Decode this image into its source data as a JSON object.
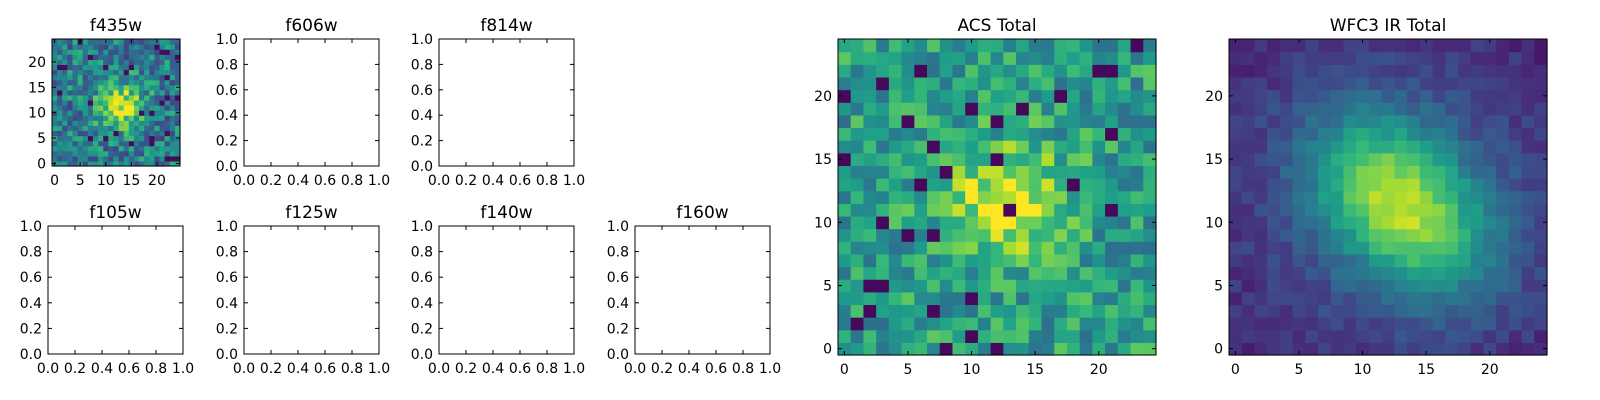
{
  "chart_data": [
    {
      "type": "heatmap",
      "title": "f435w",
      "xlim": [
        -0.5,
        24.5
      ],
      "ylim": [
        -0.5,
        24.5
      ],
      "xticks": [
        0,
        5,
        10,
        15,
        20
      ],
      "yticks": [
        0,
        5,
        10,
        15,
        20
      ],
      "colormap": "viridis",
      "grid": false
    },
    {
      "type": "empty",
      "title": "f606w",
      "xlim": [
        0,
        1
      ],
      "ylim": [
        0,
        1
      ],
      "xticks": [
        "0.0",
        "0.2",
        "0.4",
        "0.6",
        "0.8",
        "1.0"
      ],
      "yticks": [
        "0.0",
        "0.2",
        "0.4",
        "0.6",
        "0.8",
        "1.0"
      ],
      "grid": false
    },
    {
      "type": "empty",
      "title": "f814w",
      "xlim": [
        0,
        1
      ],
      "ylim": [
        0,
        1
      ],
      "xticks": [
        "0.0",
        "0.2",
        "0.4",
        "0.6",
        "0.8",
        "1.0"
      ],
      "yticks": [
        "0.0",
        "0.2",
        "0.4",
        "0.6",
        "0.8",
        "1.0"
      ],
      "grid": false
    },
    {
      "type": "empty",
      "title": "f105w",
      "xlim": [
        0,
        1
      ],
      "ylim": [
        0,
        1
      ],
      "xticks": [
        "0.0",
        "0.2",
        "0.4",
        "0.6",
        "0.8",
        "1.0"
      ],
      "yticks": [
        "0.0",
        "0.2",
        "0.4",
        "0.6",
        "0.8",
        "1.0"
      ],
      "grid": false
    },
    {
      "type": "empty",
      "title": "f125w",
      "xlim": [
        0,
        1
      ],
      "ylim": [
        0,
        1
      ],
      "xticks": [
        "0.0",
        "0.2",
        "0.4",
        "0.6",
        "0.8",
        "1.0"
      ],
      "yticks": [
        "0.0",
        "0.2",
        "0.4",
        "0.6",
        "0.8",
        "1.0"
      ],
      "grid": false
    },
    {
      "type": "empty",
      "title": "f140w",
      "xlim": [
        0,
        1
      ],
      "ylim": [
        0,
        1
      ],
      "xticks": [
        "0.0",
        "0.2",
        "0.4",
        "0.6",
        "0.8",
        "1.0"
      ],
      "yticks": [
        "0.0",
        "0.2",
        "0.4",
        "0.6",
        "0.8",
        "1.0"
      ],
      "grid": false
    },
    {
      "type": "empty",
      "title": "f160w",
      "xlim": [
        0,
        1
      ],
      "ylim": [
        0,
        1
      ],
      "xticks": [
        "0.0",
        "0.2",
        "0.4",
        "0.6",
        "0.8",
        "1.0"
      ],
      "yticks": [
        "0.0",
        "0.2",
        "0.4",
        "0.6",
        "0.8",
        "1.0"
      ],
      "grid": false
    },
    {
      "type": "heatmap",
      "title": "ACS Total",
      "xlim": [
        -0.5,
        24.5
      ],
      "ylim": [
        -0.5,
        24.5
      ],
      "xticks": [
        0,
        5,
        10,
        15,
        20
      ],
      "yticks": [
        0,
        5,
        10,
        15,
        20
      ],
      "colormap": "viridis",
      "grid": false
    },
    {
      "type": "heatmap",
      "title": "WFC3 IR Total",
      "xlim": [
        -0.5,
        24.5
      ],
      "ylim": [
        -0.5,
        24.5
      ],
      "xticks": [
        0,
        5,
        10,
        15,
        20
      ],
      "yticks": [
        0,
        5,
        10,
        15,
        20
      ],
      "colormap": "viridis",
      "grid": false
    }
  ]
}
